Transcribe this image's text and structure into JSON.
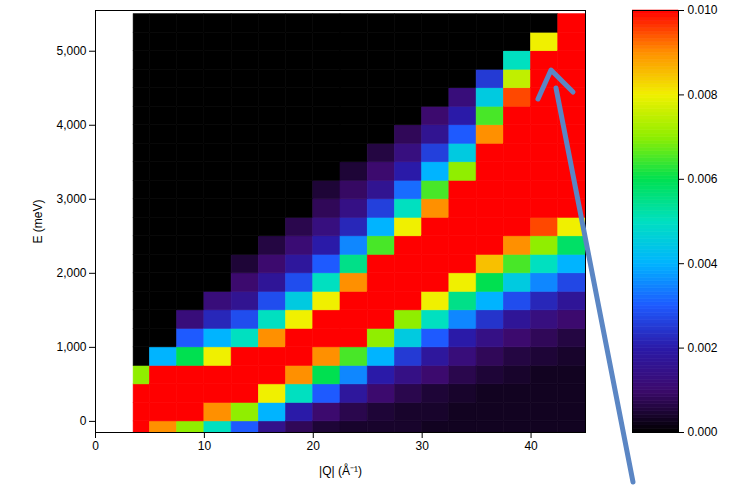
{
  "chart_data": {
    "type": "heatmap",
    "x_label": "|Q| (Å⁻¹)",
    "y_label": "E (meV)",
    "xlim": [
      0,
      45
    ],
    "ylim": [
      -150,
      5550
    ],
    "xticks": [
      0,
      10,
      20,
      30,
      40
    ],
    "yticks": [
      0,
      1000,
      2000,
      3000,
      4000,
      5000
    ],
    "x_bins": [
      3.5,
      5,
      7.5,
      10,
      12.5,
      15,
      17.5,
      20,
      22.5,
      25,
      27.5,
      30,
      32.5,
      35,
      37.5,
      40,
      42.5,
      45
    ],
    "y_bins": [
      -150,
      0,
      250,
      500,
      750,
      1000,
      1250,
      1500,
      1750,
      2000,
      2250,
      2500,
      2750,
      3000,
      3250,
      3500,
      3750,
      4000,
      4250,
      4500,
      4750,
      5000,
      5250,
      5500
    ],
    "values": [
      [
        0.011,
        0.011,
        0.01,
        0.007,
        0,
        0,
        0,
        0,
        0,
        0,
        0,
        0,
        0,
        0,
        0,
        0,
        0,
        0,
        0,
        0,
        0,
        0,
        0
      ],
      [
        0.009,
        0.011,
        0.012,
        0.01,
        0.004,
        0,
        0,
        0,
        0,
        0,
        0,
        0,
        0,
        0,
        0,
        0,
        0,
        0,
        0,
        0,
        0,
        0,
        0
      ],
      [
        0.007,
        0.01,
        0.012,
        0.011,
        0.006,
        0.003,
        0.0012,
        0,
        0,
        0,
        0,
        0,
        0,
        0,
        0,
        0,
        0,
        0,
        0,
        0,
        0,
        0,
        0
      ],
      [
        0.005,
        0.009,
        0.012,
        0.012,
        0.008,
        0.004,
        0.0022,
        0.0012,
        0,
        0,
        0,
        0,
        0,
        0,
        0,
        0,
        0,
        0,
        0,
        0,
        0,
        0,
        0
      ],
      [
        0.003,
        0.007,
        0.011,
        0.012,
        0.01,
        0.005,
        0.0028,
        0.0016,
        0.001,
        0.0005,
        0,
        0,
        0,
        0,
        0,
        0,
        0,
        0,
        0,
        0,
        0,
        0,
        0
      ],
      [
        0.0015,
        0.004,
        0.008,
        0.011,
        0.012,
        0.009,
        0.005,
        0.0028,
        0.0017,
        0.001,
        0.0006,
        0,
        0,
        0,
        0,
        0,
        0,
        0,
        0,
        0,
        0,
        0,
        0
      ],
      [
        0.0008,
        0.002,
        0.005,
        0.009,
        0.012,
        0.012,
        0.008,
        0.0045,
        0.0028,
        0.0018,
        0.0011,
        0.0007,
        0,
        0,
        0,
        0,
        0,
        0,
        0,
        0,
        0,
        0,
        0
      ],
      [
        0.0005,
        0.001,
        0.003,
        0.006,
        0.009,
        0.012,
        0.012,
        0.008,
        0.005,
        0.003,
        0.002,
        0.0013,
        0.0008,
        0.0005,
        0,
        0,
        0,
        0,
        0,
        0,
        0,
        0,
        0
      ],
      [
        0.0004,
        0.0007,
        0.0018,
        0.0035,
        0.0065,
        0.01,
        0.012,
        0.012,
        0.009,
        0.0055,
        0.0035,
        0.0022,
        0.0014,
        0.0009,
        0.0005,
        0,
        0,
        0,
        0,
        0,
        0,
        0,
        0
      ],
      [
        0.0004,
        0.0005,
        0.001,
        0.002,
        0.004,
        0.007,
        0.01,
        0.012,
        0.012,
        0.01,
        0.0065,
        0.004,
        0.0026,
        0.0016,
        0.001,
        0.0006,
        0,
        0,
        0,
        0,
        0,
        0,
        0
      ],
      [
        0.0004,
        0.0004,
        0.0007,
        0.0014,
        0.0025,
        0.0045,
        0.007,
        0.01,
        0.012,
        0.012,
        0.011,
        0.008,
        0.005,
        0.0032,
        0.002,
        0.0013,
        0.0008,
        0,
        0,
        0,
        0,
        0,
        0
      ],
      [
        0.0003,
        0.0004,
        0.0005,
        0.001,
        0.0018,
        0.003,
        0.005,
        0.008,
        0.011,
        0.012,
        0.012,
        0.011,
        0.009,
        0.0065,
        0.004,
        0.0026,
        0.0016,
        0.001,
        0,
        0,
        0,
        0,
        0
      ],
      [
        0.0003,
        0.0003,
        0.0004,
        0.0007,
        0.0012,
        0.002,
        0.0035,
        0.0055,
        0.008,
        0.011,
        0.012,
        0.012,
        0.012,
        0.01,
        0.007,
        0.0045,
        0.003,
        0.002,
        0.0012,
        0,
        0,
        0,
        0
      ],
      [
        0.0003,
        0.0003,
        0.0003,
        0.0005,
        0.0008,
        0.0014,
        0.0024,
        0.004,
        0.006,
        0.0085,
        0.011,
        0.012,
        0.012,
        0.012,
        0.012,
        0.011,
        0.009,
        0.0065,
        0.0045,
        0.0025,
        0,
        0,
        0
      ],
      [
        0.0003,
        0.0003,
        0.0003,
        0.0004,
        0.0006,
        0.001,
        0.0017,
        0.0028,
        0.0045,
        0.0065,
        0.009,
        0.011,
        0.012,
        0.012,
        0.012,
        0.012,
        0.012,
        0.011,
        0.0095,
        0.0075,
        0.005,
        0,
        0
      ],
      [
        0.0003,
        0.0003,
        0.0003,
        0.0003,
        0.0005,
        0.0008,
        0.0013,
        0.0022,
        0.0035,
        0.005,
        0.007,
        0.0095,
        0.011,
        0.012,
        0.012,
        0.012,
        0.012,
        0.012,
        0.012,
        0.011,
        0.01,
        0.008,
        0
      ],
      [
        0.0003,
        0.0003,
        0.0003,
        0.0003,
        0.0004,
        0.0006,
        0.001,
        0.0017,
        0.0027,
        0.004,
        0.0058,
        0.008,
        0.01,
        0.011,
        0.012,
        0.012,
        0.012,
        0.012,
        0.012,
        0.012,
        0.012,
        0.011,
        0.01
      ]
    ],
    "colorbar": {
      "range": [
        0,
        0.01
      ],
      "ticks": [
        {
          "value": 0,
          "label": "0.000"
        },
        {
          "value": 0.002,
          "label": "0.002"
        },
        {
          "value": 0.004,
          "label": "0.004"
        },
        {
          "value": 0.006,
          "label": "0.006"
        },
        {
          "value": 0.008,
          "label": "0.008"
        },
        {
          "value": 0.01,
          "label": "0.010"
        }
      ]
    }
  }
}
